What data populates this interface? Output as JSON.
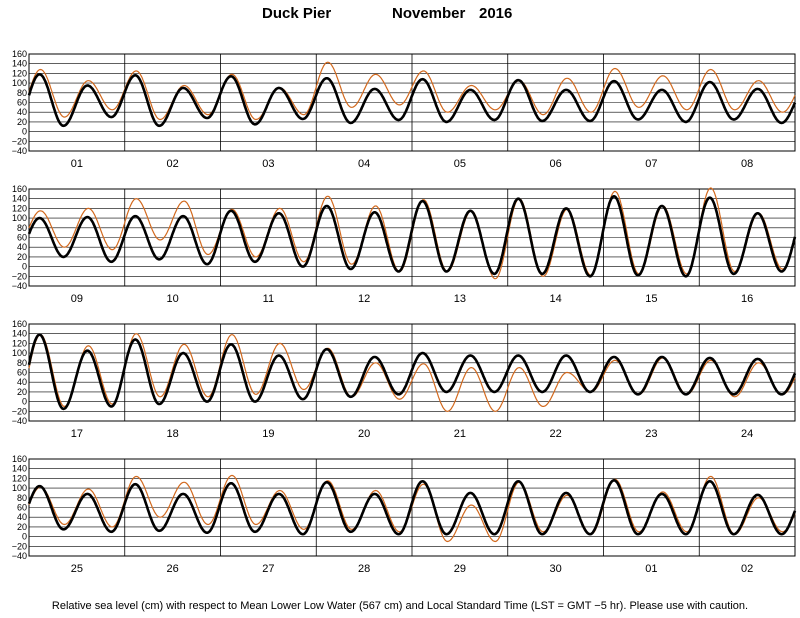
{
  "title": {
    "station": "Duck Pier",
    "month": "November",
    "year": "2016"
  },
  "caption": "Relative sea level (cm) with respect to Mean Lower Low Water (567 cm) and Local Standard Time (LST = GMT −5 hr). Please use with caution.",
  "colors": {
    "predicted": "#000000",
    "observed": "#d2691e",
    "grid": "#000000"
  },
  "chart_data": [
    {
      "type": "line",
      "x_unit": "day",
      "y_ticks": [
        "160",
        "140",
        "120",
        "100",
        "80",
        "60",
        "40",
        "20",
        "0",
        "−20",
        "−40"
      ],
      "ylim": [
        -40,
        160
      ],
      "day_labels": [
        "01",
        "02",
        "03",
        "04",
        "05",
        "06",
        "07",
        "08"
      ],
      "series": [
        {
          "name": "predicted",
          "high_tides_cm": [
            118,
            95,
            116,
            90,
            114,
            90,
            110,
            88,
            108,
            86,
            106,
            86,
            104,
            86,
            102,
            88
          ],
          "low_tides_cm": [
            12,
            30,
            12,
            28,
            15,
            26,
            18,
            24,
            20,
            24,
            22,
            22,
            25,
            20,
            25,
            18
          ]
        },
        {
          "name": "observed",
          "high_tides_cm": [
            128,
            105,
            125,
            95,
            118,
            90,
            143,
            118,
            125,
            95,
            105,
            110,
            130,
            115,
            128,
            105
          ],
          "low_tides_cm": [
            30,
            45,
            25,
            35,
            25,
            35,
            50,
            55,
            40,
            45,
            35,
            40,
            50,
            45,
            45,
            40
          ]
        }
      ]
    },
    {
      "type": "line",
      "x_unit": "day",
      "y_ticks": [
        "160",
        "140",
        "120",
        "100",
        "80",
        "60",
        "40",
        "20",
        "0",
        "−20",
        "−40"
      ],
      "ylim": [
        -40,
        160
      ],
      "day_labels": [
        "09",
        "10",
        "11",
        "12",
        "13",
        "14",
        "15",
        "16"
      ],
      "series": [
        {
          "name": "predicted",
          "high_tides_cm": [
            100,
            102,
            104,
            104,
            115,
            110,
            125,
            112,
            135,
            115,
            140,
            120,
            145,
            125,
            142,
            110
          ],
          "low_tides_cm": [
            20,
            10,
            15,
            5,
            10,
            0,
            -5,
            -10,
            -10,
            -15,
            -15,
            -20,
            -18,
            -20,
            -15,
            -10
          ]
        },
        {
          "name": "observed",
          "high_tides_cm": [
            115,
            120,
            140,
            135,
            118,
            120,
            145,
            125,
            138,
            115,
            140,
            118,
            155,
            125,
            162,
            110
          ],
          "low_tides_cm": [
            40,
            35,
            55,
            25,
            20,
            10,
            5,
            -10,
            -10,
            -25,
            -20,
            -18,
            -15,
            -15,
            -10,
            -5
          ]
        }
      ]
    },
    {
      "type": "line",
      "x_unit": "day",
      "y_ticks": [
        "160",
        "140",
        "120",
        "100",
        "80",
        "60",
        "40",
        "20",
        "0",
        "−20",
        "−40"
      ],
      "ylim": [
        -40,
        160
      ],
      "day_labels": [
        "17",
        "18",
        "19",
        "20",
        "21",
        "22",
        "23",
        "24"
      ],
      "series": [
        {
          "name": "predicted",
          "high_tides_cm": [
            138,
            105,
            128,
            100,
            118,
            95,
            108,
            92,
            100,
            95,
            95,
            95,
            92,
            92,
            90,
            88
          ],
          "low_tides_cm": [
            -15,
            -10,
            -5,
            0,
            0,
            5,
            10,
            15,
            20,
            20,
            20,
            20,
            15,
            15,
            15,
            15
          ]
        },
        {
          "name": "observed",
          "high_tides_cm": [
            138,
            115,
            140,
            118,
            138,
            120,
            110,
            80,
            78,
            70,
            70,
            60,
            85,
            90,
            85,
            80
          ],
          "low_tides_cm": [
            -10,
            -5,
            10,
            10,
            15,
            25,
            10,
            5,
            -20,
            -20,
            -10,
            20,
            15,
            15,
            10,
            15
          ]
        }
      ]
    },
    {
      "type": "line",
      "x_unit": "day",
      "y_ticks": [
        "160",
        "140",
        "120",
        "100",
        "80",
        "60",
        "40",
        "20",
        "0",
        "−20",
        "−40"
      ],
      "ylim": [
        -40,
        160
      ],
      "day_labels": [
        "25",
        "26",
        "27",
        "28",
        "29",
        "30",
        "01",
        "02"
      ],
      "series": [
        {
          "name": "predicted",
          "high_tides_cm": [
            104,
            88,
            108,
            88,
            110,
            88,
            112,
            88,
            114,
            90,
            114,
            90,
            116,
            88,
            114,
            86
          ],
          "low_tides_cm": [
            15,
            10,
            12,
            8,
            10,
            5,
            10,
            5,
            5,
            5,
            5,
            5,
            5,
            5,
            5,
            5
          ]
        },
        {
          "name": "observed",
          "high_tides_cm": [
            102,
            98,
            124,
            112,
            126,
            95,
            115,
            95,
            108,
            65,
            112,
            85,
            118,
            92,
            124,
            80
          ],
          "low_tides_cm": [
            25,
            20,
            40,
            25,
            25,
            15,
            15,
            10,
            -10,
            -10,
            10,
            5,
            10,
            10,
            5,
            10
          ]
        }
      ]
    }
  ]
}
